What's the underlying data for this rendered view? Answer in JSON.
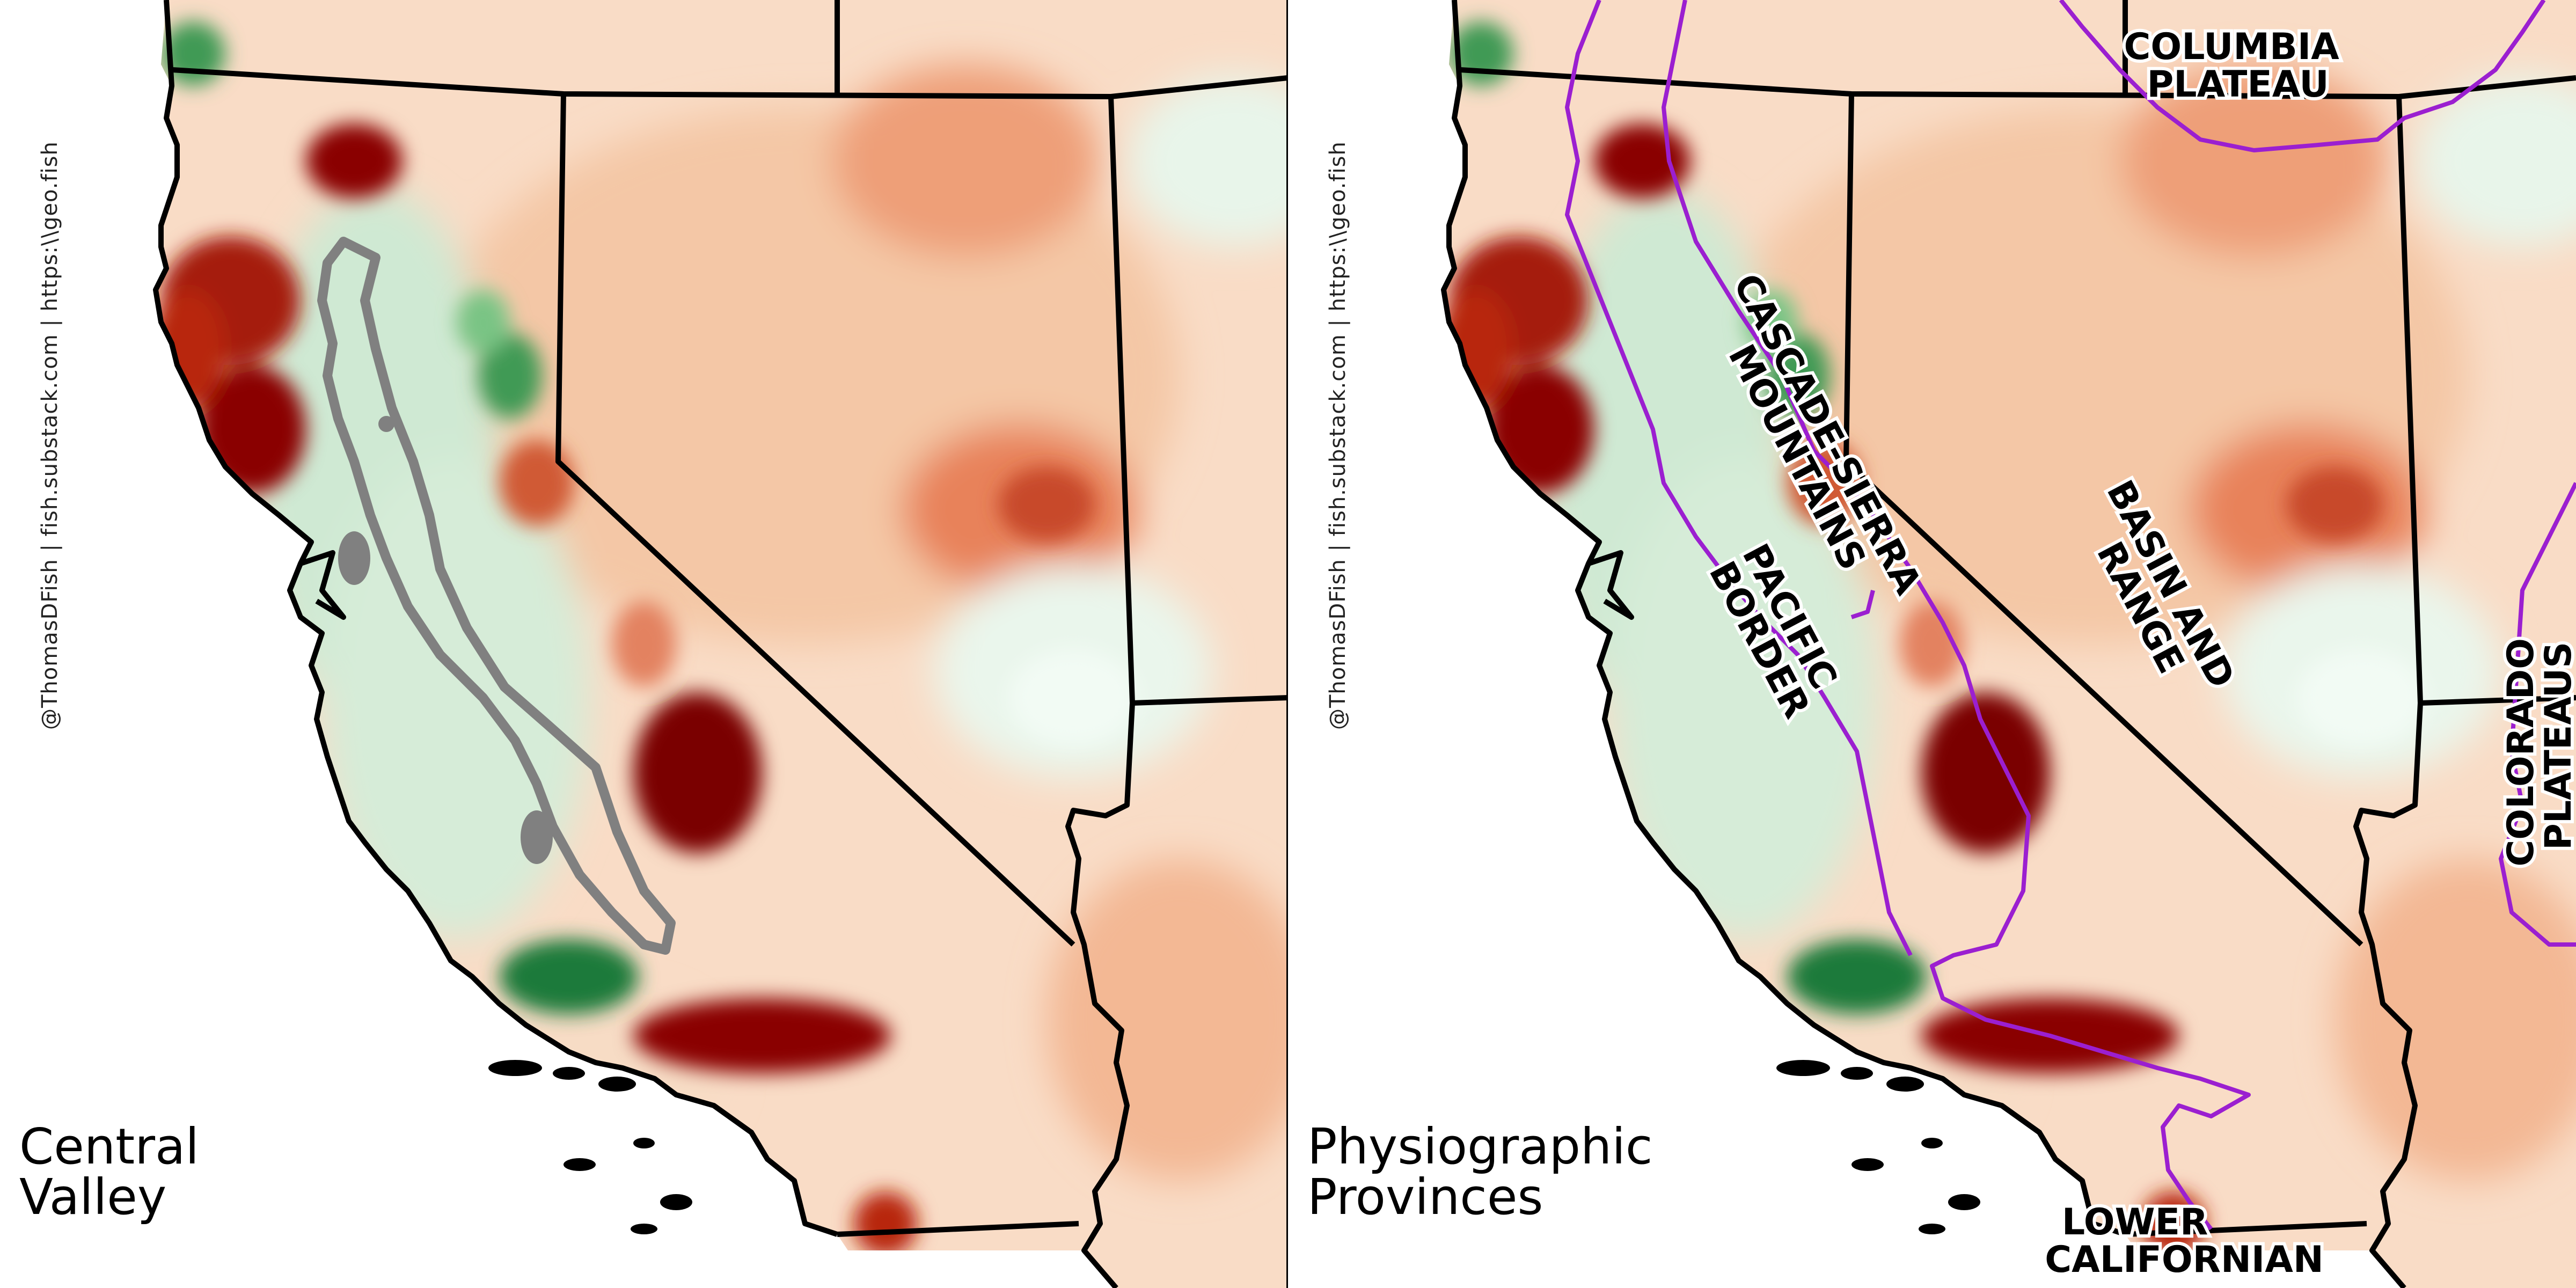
{
  "credit": "@ThomasDFish | fish.substack.com | https:\\\\geo.fish",
  "palette": {
    "dark_red": "#7a0000",
    "red": "#b8260f",
    "orange": "#e8825a",
    "light_orange": "#f6d3ba",
    "pale": "#fdf1e6",
    "pale_green": "#e8f5ea",
    "green": "#6fbf7a",
    "dark_green": "#1b7a3a",
    "outline_gray": "#808080",
    "province_purple": "#9b1fd0",
    "border_black": "#000000"
  },
  "panels": [
    {
      "title": "Central\nValley",
      "overlay": "Central Valley outline"
    },
    {
      "title": "Physiographic\nProvinces",
      "overlay": "Province boundaries",
      "provinces": [
        {
          "name": "COLUMBIA\nPLATEAU"
        },
        {
          "name": "CASCADE-SIERRA\nMOUNTAINS"
        },
        {
          "name": "PACIFIC\nBORDER"
        },
        {
          "name": "BASIN AND\nRANGE"
        },
        {
          "name": "COLORADO\nPLATEAUS"
        },
        {
          "name": "LOWER\nCALIFORNIAN"
        }
      ]
    }
  ]
}
